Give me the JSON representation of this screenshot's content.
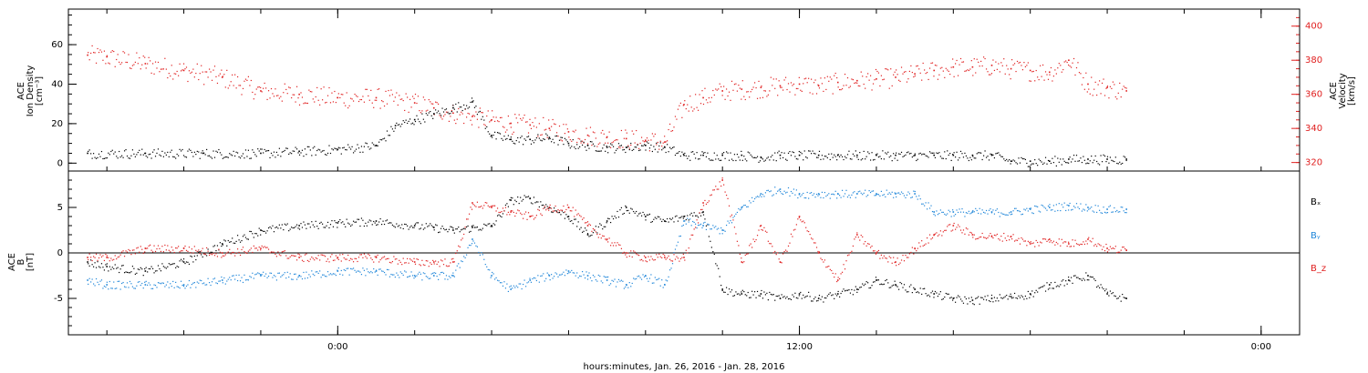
{
  "chart_data": [
    {
      "type": "scatter",
      "panel": "top",
      "left_axis_label": [
        "ACE",
        "Ion Density",
        "[cm⁻³]"
      ],
      "right_axis_label": [
        "ACE",
        "Velocity",
        "[km/s]"
      ],
      "left_ylim": [
        -4,
        78
      ],
      "right_ylim": [
        315,
        410
      ],
      "left_yticks": [
        0,
        20,
        40,
        60
      ],
      "right_yticks": [
        320,
        340,
        360,
        380,
        400
      ],
      "colors": {
        "density": "#000000",
        "velocity": "#e02020"
      },
      "series": [
        {
          "key": "density",
          "axis": "left",
          "x": [
            -6.5,
            -5,
            -3.5,
            -2,
            -1,
            0,
            1,
            1.5,
            2,
            2.5,
            3,
            3.5,
            4,
            4.5,
            5,
            5.5,
            6,
            6.5,
            7,
            7.5,
            8,
            8.5,
            9,
            9.5,
            10,
            10.5,
            11,
            11.5,
            12,
            12.5,
            13,
            13.5,
            14,
            14.5,
            15,
            15.5,
            16,
            16.5,
            17,
            17.5,
            18,
            18.5,
            19,
            19.5,
            20,
            20.5
          ],
          "y": [
            5,
            5,
            5,
            5,
            6,
            7,
            9,
            19,
            22,
            25,
            28,
            31,
            14,
            12,
            12,
            13,
            10,
            9,
            8,
            8,
            9,
            8,
            4,
            4,
            4,
            4,
            3,
            4,
            4,
            4,
            4,
            4,
            4,
            4,
            4,
            4,
            4,
            4,
            4,
            1,
            1,
            1,
            2,
            2,
            2,
            2
          ]
        },
        {
          "key": "velocity",
          "axis": "right",
          "x": [
            -6.5,
            -6,
            -5,
            -4,
            -3,
            -2,
            -1,
            0,
            1,
            2,
            2.5,
            3,
            3.5,
            4,
            4.5,
            5,
            5.5,
            6,
            6.5,
            7,
            7.5,
            8,
            8.5,
            9,
            9.5,
            10,
            10.5,
            11,
            11.5,
            12,
            12.5,
            13,
            13.5,
            14,
            14.5,
            15,
            15.5,
            16,
            16.5,
            17,
            17.5,
            18,
            18.5,
            19,
            19.5,
            20,
            20.5
          ],
          "y": [
            383,
            382,
            378,
            374,
            370,
            362,
            360,
            358,
            358,
            355,
            352,
            349,
            347,
            345,
            343,
            342,
            340,
            338,
            336,
            335,
            334,
            333,
            332,
            354,
            358,
            362,
            363,
            364,
            365,
            366,
            365,
            367,
            368,
            369,
            370,
            372,
            374,
            376,
            376,
            377,
            375,
            374,
            373,
            380,
            366,
            364,
            362
          ]
        }
      ]
    },
    {
      "type": "scatter",
      "panel": "bottom",
      "left_axis_label": [
        "ACE",
        "B",
        "[nT]"
      ],
      "ylim": [
        -9,
        9
      ],
      "yticks": [
        -5,
        0,
        5
      ],
      "legend": [
        {
          "label": "Bₓ",
          "color": "#000000"
        },
        {
          "label": "Bᵧ",
          "color": "#1f86d9"
        },
        {
          "label": "B_z",
          "color": "#e02020"
        }
      ],
      "legend_position": "right",
      "series": [
        {
          "key": "Bx",
          "color": "#000000",
          "x": [
            -6.5,
            -6,
            -5,
            -4,
            -3,
            -2,
            -1,
            0,
            1,
            2,
            2.5,
            3,
            3.5,
            4,
            4.5,
            5,
            5.5,
            6,
            6.5,
            7,
            7.5,
            8,
            8.5,
            9,
            9.5,
            10,
            10.5,
            11,
            11.5,
            12,
            12.5,
            13,
            13.5,
            14,
            14.5,
            15,
            15.5,
            16,
            16.5,
            17,
            17.5,
            18,
            18.5,
            19,
            19.5,
            20,
            20.5
          ],
          "y": [
            -1,
            -1.5,
            -2,
            -1,
            1,
            2.5,
            3,
            3.3,
            3.5,
            3,
            2.8,
            2.5,
            2.8,
            3,
            5.8,
            6,
            5,
            4,
            2,
            3.5,
            5,
            4,
            3.5,
            4,
            4.5,
            -4,
            -4.5,
            -4.5,
            -5,
            -4.5,
            -5,
            -4.5,
            -4,
            -3,
            -3.5,
            -4,
            -4.5,
            -5,
            -5.2,
            -5,
            -4.8,
            -4.5,
            -3.5,
            -3,
            -2.5,
            -4.5,
            -5
          ]
        },
        {
          "key": "By",
          "color": "#1f86d9",
          "x": [
            -6.5,
            -6,
            -5,
            -4,
            -3,
            -2,
            -1,
            0,
            1,
            2,
            2.5,
            3,
            3.5,
            4,
            4.5,
            5,
            5.5,
            6,
            6.5,
            7,
            7.5,
            8,
            8.5,
            9,
            9.5,
            10,
            10.5,
            11,
            11.5,
            12,
            12.5,
            13,
            13.5,
            14,
            14.5,
            15,
            15.5,
            16,
            16.5,
            17,
            17.5,
            18,
            18.5,
            19,
            19.5,
            20,
            20.5
          ],
          "y": [
            -3,
            -3.5,
            -3.5,
            -3.5,
            -3,
            -2.5,
            -2.5,
            -2,
            -2,
            -2.5,
            -2.5,
            -2.5,
            1.5,
            -2.5,
            -4,
            -3,
            -2.5,
            -2,
            -2.5,
            -3,
            -3.5,
            -2.5,
            -3.5,
            3.5,
            3,
            2.5,
            5,
            6.5,
            7,
            6.5,
            6.5,
            6.5,
            6.5,
            6.5,
            6.5,
            6.5,
            4.5,
            4.5,
            4.5,
            4.5,
            4.5,
            4.8,
            5,
            5.2,
            5,
            4.8,
            4.8
          ]
        },
        {
          "key": "Bz",
          "color": "#e02020",
          "x": [
            -6.5,
            -6,
            -5,
            -4,
            -3,
            -2,
            -1,
            0,
            1,
            2,
            2.5,
            3,
            3.5,
            4,
            4.5,
            5,
            5.5,
            6,
            6.5,
            7,
            7.5,
            8,
            8.5,
            9,
            9.5,
            10,
            10.5,
            11,
            11.5,
            12,
            12.5,
            13,
            13.5,
            14,
            14.5,
            15,
            15.5,
            16,
            16.5,
            17,
            17.5,
            18,
            18.5,
            19,
            19.5,
            20,
            20.5
          ],
          "y": [
            -0.5,
            -0.5,
            0.5,
            0.5,
            0,
            0.5,
            -0.5,
            -0.5,
            -0.5,
            -1,
            -1,
            -1,
            5.5,
            5,
            4.5,
            4,
            5,
            5,
            3,
            1.5,
            0,
            -0.5,
            -0.5,
            -0.5,
            5.5,
            8,
            -1,
            3,
            -1,
            4,
            0,
            -3,
            2,
            0,
            -1,
            0.5,
            2,
            3,
            2,
            1.8,
            1.8,
            1,
            1.5,
            1,
            1.5,
            0.5,
            0.3
          ]
        }
      ]
    }
  ],
  "x_axis": {
    "xlim": [
      -7,
      25
    ],
    "tick_labels": [
      {
        "value": 0,
        "label": "0:00"
      },
      {
        "value": 12,
        "label": "12:00"
      },
      {
        "value": 24,
        "label": "0:00"
      }
    ],
    "minor_step": 2,
    "title": "hours:minutes, Jan. 26, 2016 - Jan. 28, 2016"
  }
}
